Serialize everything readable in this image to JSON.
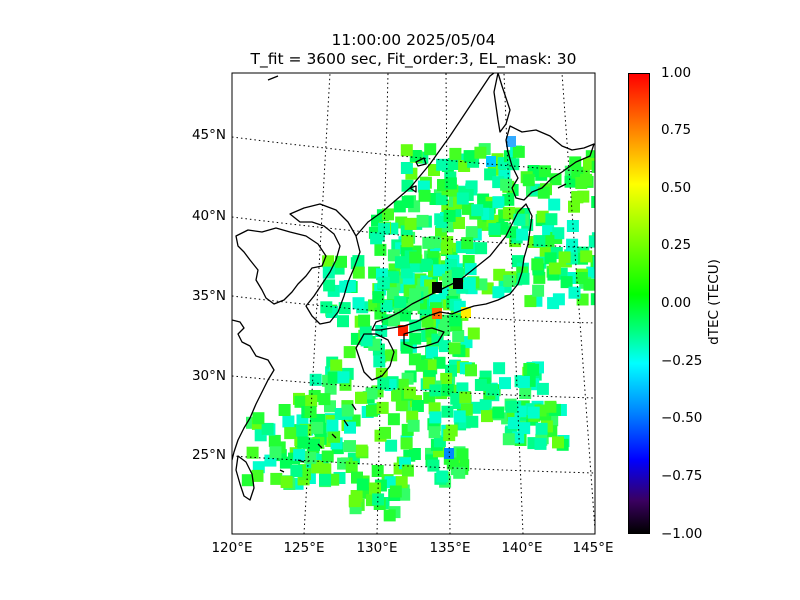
{
  "title": {
    "line1": "11:00:00 2025/05/04",
    "line2": "T_fit = 3600 sec, Fit_order:3, EL_mask: 30"
  },
  "map": {
    "lat_labels": [
      "45°N",
      "40°N",
      "35°N",
      "30°N",
      "25°N"
    ],
    "lon_labels": [
      "120°E",
      "125°E",
      "130°E",
      "135°E",
      "140°E",
      "145°E"
    ],
    "extent": {
      "lon": [
        120,
        145
      ],
      "lat": [
        20,
        49
      ]
    },
    "gridlines": "dotted",
    "background_color": "#ffffff"
  },
  "colorbar": {
    "label": "dTEC (TECU)",
    "ticks": [
      "1.00",
      "0.75",
      "0.50",
      "0.25",
      "0.00",
      "−0.25",
      "−0.50",
      "−0.75",
      "−1.00"
    ],
    "range": [
      -1.0,
      1.0
    ],
    "colormap": [
      "#000000",
      "#3a0060",
      "#0000ff",
      "#0080ff",
      "#00ffff",
      "#00ff80",
      "#00ff00",
      "#80ff00",
      "#ffff00",
      "#ff8000",
      "#ff0000"
    ]
  }
}
